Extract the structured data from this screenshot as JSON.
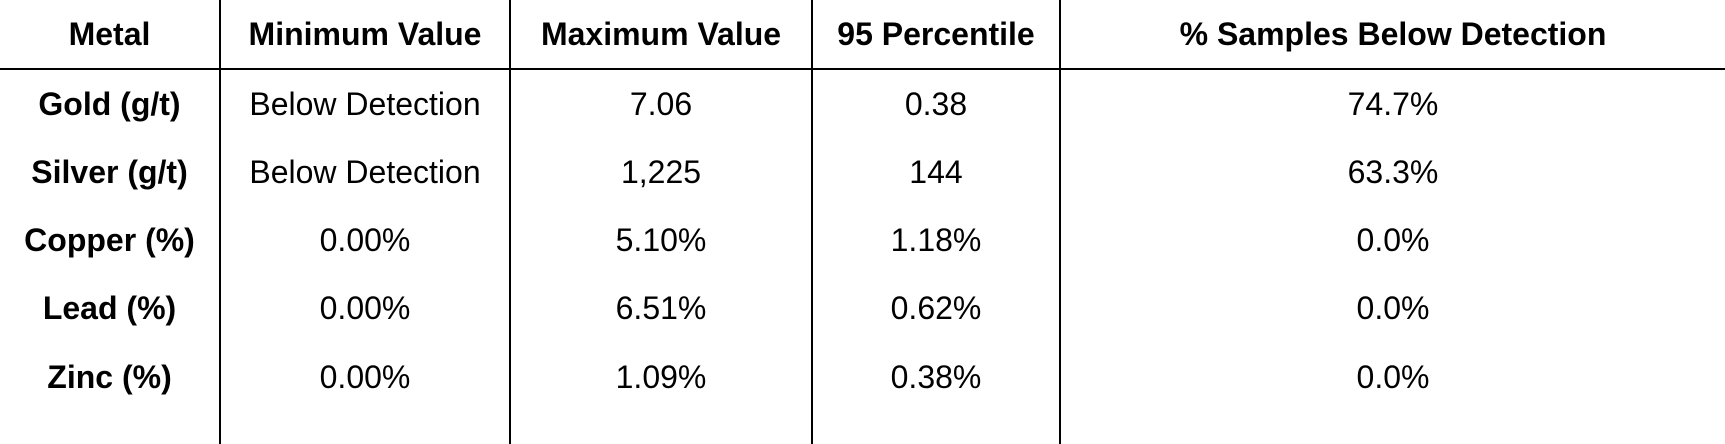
{
  "header": {
    "columns": [
      "Metal",
      "Minimum Value",
      "Maximum Value",
      "95 Percentile",
      "% Samples Below Detection"
    ]
  },
  "table": {
    "rows": [
      [
        "Gold (g/t)",
        "Below Detection",
        "7.06",
        "0.38",
        "74.7%"
      ],
      [
        "Silver (g/t)",
        "Below Detection",
        "1,225",
        "144",
        "63.3%"
      ],
      [
        "Copper (%)",
        "0.00%",
        "5.10%",
        "1.18%",
        "0.0%"
      ],
      [
        "Lead (%)",
        "0.00%",
        "6.51%",
        "0.62%",
        "0.0%"
      ],
      [
        "Zinc (%)",
        "0.00%",
        "1.09%",
        "0.38%",
        "0.0%"
      ]
    ]
  }
}
